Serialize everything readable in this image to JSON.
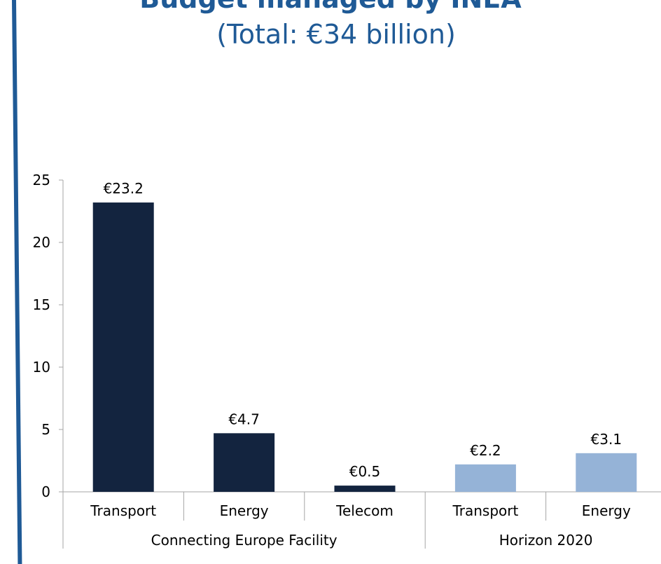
{
  "title": "Budget managed by INEA",
  "subtitle": "(Total: €34 billion)",
  "colors": {
    "accent": "#1f5a96",
    "cef": "#13243f",
    "h2020": "#95b3d7"
  },
  "chart_data": {
    "type": "bar",
    "title": "Budget managed by INEA",
    "subtitle": "(Total: €34 billion)",
    "ylim": [
      0,
      25
    ],
    "yticks": [
      0,
      5,
      10,
      15,
      20,
      25
    ],
    "grid": false,
    "legend": "none",
    "groups": [
      {
        "name": "Connecting Europe Facility",
        "categories": [
          "Transport",
          "Energy",
          "Telecom"
        ]
      },
      {
        "name": "Horizon 2020",
        "categories": [
          "Transport",
          "Energy"
        ]
      }
    ],
    "categories": [
      "Transport",
      "Energy",
      "Telecom",
      "Transport",
      "Energy"
    ],
    "values": [
      23.2,
      4.7,
      0.5,
      2.2,
      3.1
    ],
    "labels": [
      "€23.2",
      "€4.7",
      "€0.5",
      "€2.2",
      "€3.1"
    ],
    "bar_colors": [
      "#13243f",
      "#13243f",
      "#13243f",
      "#95b3d7",
      "#95b3d7"
    ]
  }
}
